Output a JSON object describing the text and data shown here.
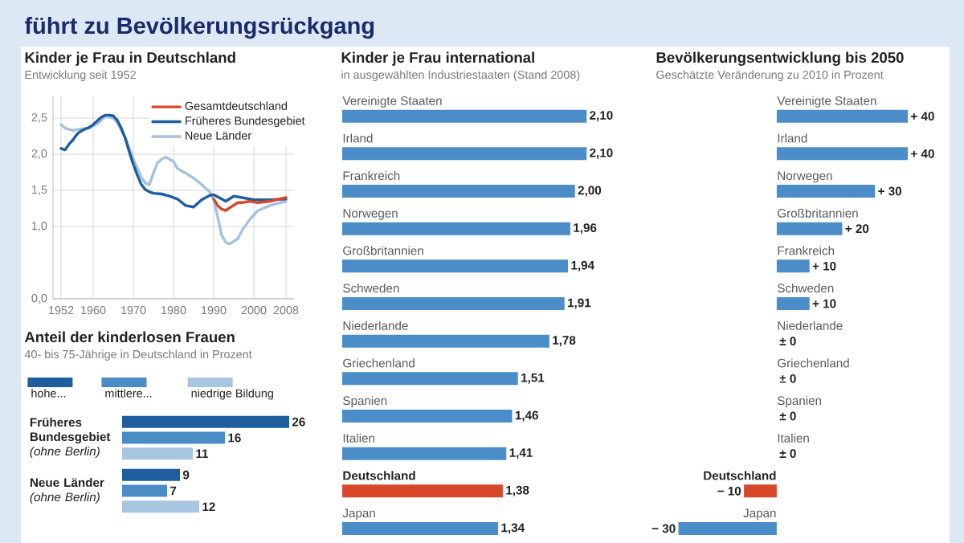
{
  "chart_data": [
    {
      "type": "other",
      "title": "führt zu Bevölkerungsrückgang"
    },
    {
      "type": "line",
      "title": "Kinder je Frau in Deutschland",
      "subtitle": "Entwicklung seit 1952",
      "series": [
        {
          "name": "Gesamtdeutschland",
          "color": "#d9472b",
          "x": [
            1990,
            1991,
            1992,
            1993,
            1994,
            1996,
            1997,
            1999,
            2001,
            2004,
            2008
          ],
          "values": [
            1.38,
            1.29,
            1.24,
            1.22,
            1.26,
            1.33,
            1.33,
            1.35,
            1.33,
            1.35,
            1.4
          ]
        },
        {
          "name": "Früheres Bundesgebiet",
          "color": "#1f5e9e",
          "x": [
            1952,
            1953,
            1954,
            1955,
            1956,
            1957,
            1958,
            1959,
            1960,
            1961,
            1962,
            1963,
            1964,
            1965,
            1966,
            1967,
            1968,
            1969,
            1970,
            1971,
            1972,
            1973,
            1974,
            1975,
            1977,
            1979,
            1981,
            1983,
            1985,
            1987,
            1989,
            1990,
            1992,
            1993,
            1995,
            1997,
            2000,
            2004,
            2008
          ],
          "values": [
            2.08,
            2.06,
            2.14,
            2.2,
            2.28,
            2.32,
            2.35,
            2.37,
            2.41,
            2.46,
            2.51,
            2.54,
            2.54,
            2.53,
            2.47,
            2.36,
            2.22,
            2.03,
            1.86,
            1.71,
            1.58,
            1.51,
            1.48,
            1.46,
            1.45,
            1.42,
            1.38,
            1.29,
            1.27,
            1.37,
            1.43,
            1.44,
            1.38,
            1.35,
            1.42,
            1.4,
            1.37,
            1.37,
            1.38
          ]
        },
        {
          "name": "Neue Länder",
          "color": "#a6c1de",
          "x": [
            1952,
            1953,
            1955,
            1957,
            1959,
            1961,
            1962,
            1963,
            1965,
            1966,
            1967,
            1968,
            1969,
            1970,
            1971,
            1972,
            1973,
            1974,
            1975,
            1976,
            1977,
            1978,
            1980,
            1981,
            1983,
            1985,
            1987,
            1989,
            1990,
            1991,
            1992,
            1993,
            1994,
            1996,
            1997,
            1999,
            2001,
            2004,
            2008
          ],
          "values": [
            2.41,
            2.36,
            2.33,
            2.35,
            2.36,
            2.42,
            2.47,
            2.53,
            2.5,
            2.44,
            2.33,
            2.22,
            2.08,
            1.93,
            1.81,
            1.68,
            1.6,
            1.58,
            1.74,
            1.88,
            1.93,
            1.96,
            1.9,
            1.8,
            1.74,
            1.67,
            1.58,
            1.48,
            1.37,
            1.13,
            0.88,
            0.78,
            0.76,
            0.83,
            0.94,
            1.1,
            1.22,
            1.29,
            1.35
          ]
        }
      ],
      "xlim": [
        1950,
        2010
      ],
      "xticks": [
        1952,
        1960,
        1970,
        1980,
        1990,
        2000,
        2008
      ],
      "ylim": [
        0,
        2.8
      ],
      "yticks": [
        {
          "value": 0,
          "label": "0,0"
        },
        {
          "value": 1,
          "label": "1,0"
        },
        {
          "value": 1.5,
          "label": "1,5"
        },
        {
          "value": 2,
          "label": "2,0"
        },
        {
          "value": 2.5,
          "label": "2,5"
        }
      ],
      "grid": true,
      "legend": "top right"
    },
    {
      "type": "bar",
      "orientation": "horizontal",
      "title": "Anteil der kinderlosen Frauen",
      "subtitle": "40- bis 75-Jährige in Deutschland in Prozent",
      "categories": [
        "**Früheres Bundesgebiet** *(ohne Berlin)*",
        "**Neue Länder** *(ohne Berlin)*"
      ],
      "series": [
        {
          "name": "hohe...",
          "color": "#1f5e9e",
          "values": [
            26,
            9
          ]
        },
        {
          "name": "mittlere...",
          "color": "#4a8cc6",
          "values": [
            16,
            7
          ]
        },
        {
          "name": "niedrige Bildung",
          "color": "#a8c5e2",
          "values": [
            11,
            12
          ]
        }
      ],
      "data_labels": true,
      "legend": "top"
    },
    {
      "type": "bar",
      "orientation": "horizontal",
      "title": "Kinder je Frau international",
      "subtitle": "in ausgewählten Industriestaaten (Stand 2008)",
      "categories": [
        "Vereinigte Staaten",
        "Irland",
        "Frankreich",
        "Norwegen",
        "Großbritannien",
        "Schweden",
        "Niederlande",
        "Griechenland",
        "Spanien",
        "Italien",
        "Deutschland",
        "Japan"
      ],
      "values": [
        2.1,
        2.1,
        2.0,
        1.96,
        1.94,
        1.91,
        1.78,
        1.51,
        1.46,
        1.41,
        1.38,
        1.34
      ],
      "colors": [
        "#4a8dc8",
        "#4a8dc8",
        "#4a8dc8",
        "#4a8dc8",
        "#4a8dc8",
        "#4a8dc8",
        "#4a8dc8",
        "#4a8dc8",
        "#4a8dc8",
        "#4a8dc8",
        "#d9472b",
        "#4a8dc8"
      ],
      "value_labels": [
        "2,10",
        "2,10",
        "2,00",
        "1,96",
        "1,94",
        "1,91",
        "1,78",
        "1,51",
        "1,46",
        "1,41",
        "1,38",
        "1,34"
      ]
    },
    {
      "type": "bar",
      "orientation": "horizontal",
      "title": "Bevölkerungsentwicklung bis 2050",
      "subtitle": "Geschätzte Veränderung zu 2010 in Prozent",
      "categories": [
        "Vereinigte Staaten",
        "Irland",
        "Norwegen",
        "Großbritannien",
        "Frankreich",
        "Schweden",
        "Niederlande",
        "Griechenland",
        "Spanien",
        "Italien",
        "Deutschland",
        "Japan"
      ],
      "values": [
        40,
        40,
        30,
        20,
        10,
        10,
        0,
        0,
        0,
        0,
        -10,
        -30
      ],
      "colors": [
        "#4a8dc8",
        "#4a8dc8",
        "#4a8dc8",
        "#4a8dc8",
        "#4a8dc8",
        "#4a8dc8",
        null,
        null,
        null,
        null,
        "#d9472b",
        "#4a8dc8"
      ],
      "value_labels": [
        "+ 40",
        "+ 40",
        "+ 30",
        "+ 20",
        "+ 10",
        "+ 10",
        "± 0",
        "± 0",
        "± 0",
        "± 0",
        "− 10",
        "− 30"
      ]
    }
  ]
}
